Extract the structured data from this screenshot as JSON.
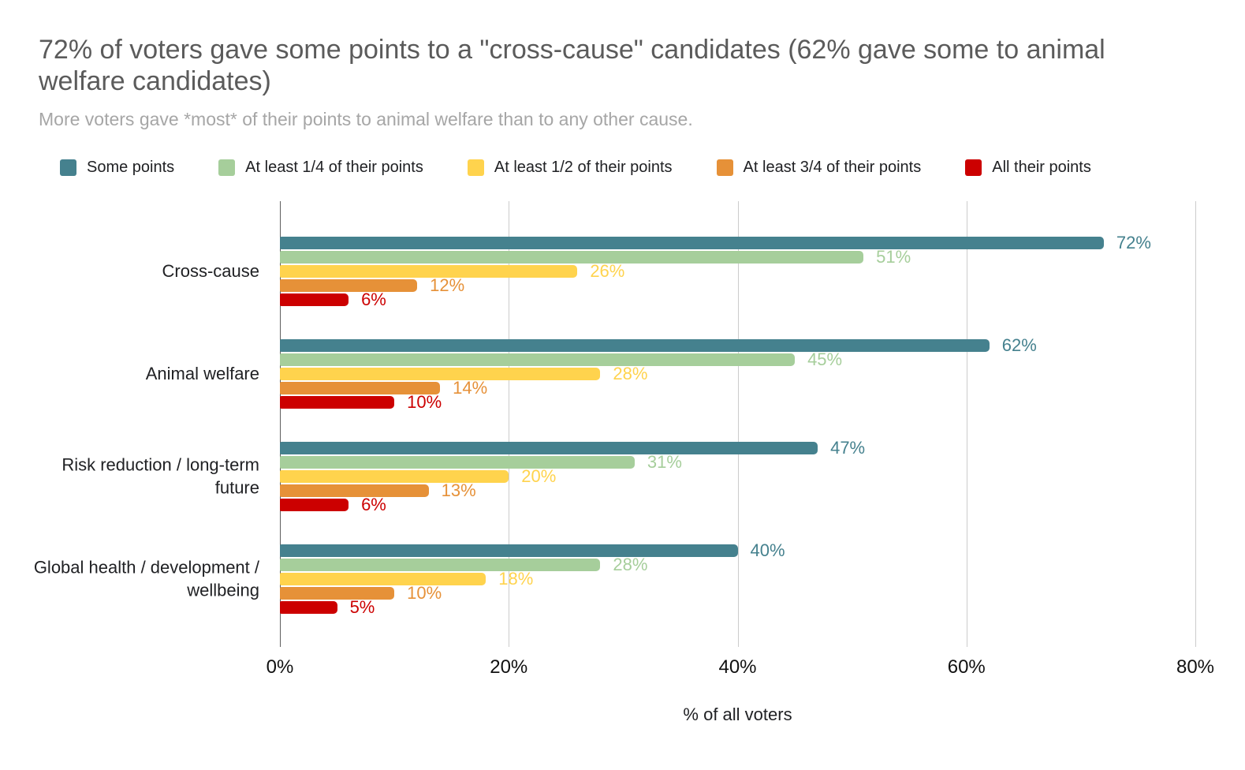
{
  "title": "72% of voters gave some points to a \"cross-cause\" candidates (62% gave some to animal welfare candidates)",
  "subtitle": "More voters gave *most* of their points to animal welfare than to any other cause.",
  "chart_data": {
    "type": "bar",
    "orientation": "horizontal",
    "title": "72% of voters gave some points to a \"cross-cause\" candidates (62% gave some to animal welfare candidates)",
    "subtitle": "More voters gave *most* of their points to animal welfare than to any other cause.",
    "categories": [
      "Cross-cause",
      "Animal welfare",
      "Risk reduction / long-term future",
      "Global health / development / wellbeing"
    ],
    "series": [
      {
        "name": "Some points",
        "color": "#45818E",
        "values": [
          72,
          62,
          47,
          40
        ]
      },
      {
        "name": "At least 1/4 of their points",
        "color": "#A6CE9B",
        "values": [
          51,
          45,
          31,
          28
        ]
      },
      {
        "name": "At least 1/2 of their points",
        "color": "#FFD34D",
        "values": [
          26,
          28,
          20,
          18
        ]
      },
      {
        "name": "At least 3/4 of their points",
        "color": "#E69138",
        "values": [
          12,
          14,
          13,
          10
        ]
      },
      {
        "name": "All their points",
        "color": "#CC0000",
        "values": [
          6,
          10,
          6,
          5
        ]
      }
    ],
    "xlabel": "% of all voters",
    "ylabel": "",
    "xlim": [
      0,
      80
    ],
    "x_ticks": [
      "0%",
      "20%",
      "40%",
      "60%",
      "80%"
    ],
    "grid": true,
    "legend_position": "top",
    "value_label_format": "{value}%"
  }
}
